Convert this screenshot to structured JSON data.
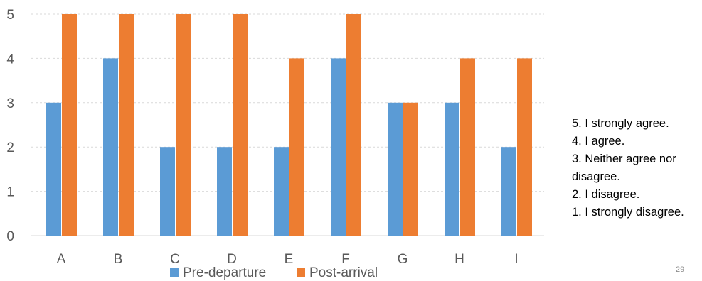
{
  "chart_data": {
    "type": "bar",
    "categories": [
      "A",
      "B",
      "C",
      "D",
      "E",
      "F",
      "G",
      "H",
      "I"
    ],
    "series": [
      {
        "name": "Pre-departure",
        "color": "#5b9bd5",
        "values": [
          3,
          4,
          2,
          2,
          2,
          4,
          3,
          3,
          2
        ]
      },
      {
        "name": "Post-arrival",
        "color": "#ed7d31",
        "values": [
          5,
          5,
          5,
          5,
          4,
          5,
          3,
          4,
          4
        ]
      }
    ],
    "title": "",
    "xlabel": "",
    "ylabel": "",
    "ylim": [
      0,
      5
    ],
    "yticks": [
      "0",
      "1",
      "2",
      "3",
      "4",
      "5"
    ],
    "grid": "horizontal-dashed",
    "legend_position": "bottom"
  },
  "scale": {
    "lines": [
      "5. I strongly agree.",
      "4. I agree.",
      "3. Neither agree nor",
      "disagree.",
      "2. I disagree.",
      "1. I strongly disagree."
    ]
  },
  "page_number": "29"
}
